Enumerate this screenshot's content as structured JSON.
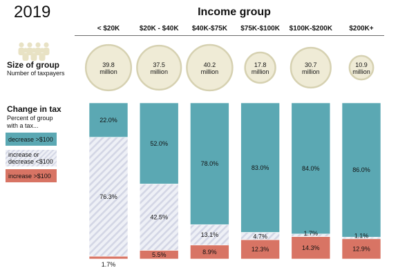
{
  "year": "2019",
  "chart_title": "Income group",
  "size_section": {
    "title": "Size of group",
    "subtitle": "Number of taxpayers"
  },
  "change_section": {
    "title": "Change in tax",
    "subtitle": [
      "Percent of group",
      "with a tax..."
    ]
  },
  "legend": {
    "decrease": "decrease >$100",
    "mid": [
      "increase or",
      "decrease <$100"
    ],
    "increase": "increase >$100"
  },
  "colors": {
    "decrease": "#5ba8b3",
    "mid_light": "#eef0f6",
    "mid_hatch": "#d5d8e6",
    "increase": "#d87464",
    "circle_fill": "#efebd6",
    "circle_stroke": "#d6d1b1"
  },
  "icon": "people-group-icon",
  "chart_data": {
    "type": "bar",
    "stacked": true,
    "ylim": [
      0,
      100
    ],
    "categories": [
      "< $20K",
      "$20K - $40K",
      "$40K-$75K",
      "$75K-$100K",
      "$100K-$200K",
      "$200K+"
    ],
    "group_size": {
      "values": [
        39.8,
        37.5,
        40.2,
        17.8,
        30.7,
        10.9
      ],
      "labels": [
        "39.8",
        "37.5",
        "40.2",
        "17.8",
        "30.7",
        "10.9"
      ],
      "unit": "million"
    },
    "series": [
      {
        "name": "decrease >$100",
        "values": [
          22.0,
          52.0,
          78.0,
          83.0,
          84.0,
          86.0
        ],
        "labels": [
          "22.0%",
          "52.0%",
          "78.0%",
          "83.0%",
          "84.0%",
          "86.0%"
        ]
      },
      {
        "name": "increase or decrease <$100",
        "values": [
          76.3,
          42.5,
          13.1,
          4.7,
          1.7,
          1.1
        ],
        "labels": [
          "76.3%",
          "42.5%",
          "13.1%",
          "4.7%",
          "1.7%",
          "1.1%"
        ]
      },
      {
        "name": "increase >$100",
        "values": [
          1.7,
          5.5,
          8.9,
          12.3,
          14.3,
          12.9
        ],
        "labels": [
          "1.7%",
          "5.5%",
          "8.9%",
          "12.3%",
          "14.3%",
          "12.9%"
        ]
      }
    ]
  }
}
